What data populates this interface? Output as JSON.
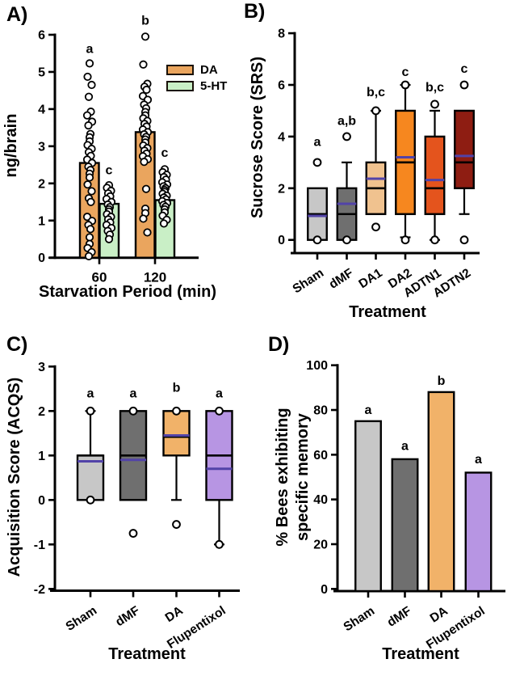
{
  "figure": {
    "background": "#FFFFFF"
  },
  "style_colors": {
    "axis": "#000000",
    "box_border": "#000000",
    "median_line": "#000000",
    "mean_line": "#5243A8",
    "point_fill": "#FFFFFF",
    "point_stroke": "#000000"
  },
  "chart_data": [
    {
      "panel_label": "A)",
      "type": "grouped-bar-scatter",
      "ylabel": "ng/brain",
      "xlabel": "Starvation Period (min)",
      "ylim": [
        0,
        6
      ],
      "yticks": [
        0,
        1,
        2,
        3,
        4,
        5,
        6
      ],
      "categories": [
        "60",
        "120"
      ],
      "legend_position": "upper-right",
      "series": [
        {
          "name": "DA",
          "color": "#EAA55E",
          "bar_means": [
            2.55,
            3.38
          ],
          "points": [
            [
              5.23,
              4.87,
              4.65,
              4.33,
              3.93,
              3.83,
              3.66,
              3.56,
              3.33,
              3.24,
              3.13,
              3.03,
              2.93,
              2.84,
              2.74,
              2.64,
              2.55,
              2.45,
              2.36,
              2.26,
              2.16,
              1.97,
              1.79,
              1.6,
              1.5,
              1.1,
              0.99,
              0.88,
              0.77,
              0.55,
              0.37,
              0.26,
              0.15,
              0.04
            ],
            [
              5.95,
              5.2,
              4.68,
              4.6,
              4.52,
              4.35,
              4.25,
              4.12,
              4.02,
              3.92,
              3.83,
              3.75,
              3.68,
              3.6,
              3.53,
              3.45,
              3.38,
              3.32,
              3.25,
              3.18,
              3.1,
              3.02,
              2.95,
              2.88,
              2.8,
              2.73,
              2.65,
              2.58,
              1.85,
              1.32,
              1.2,
              1.05,
              0.68
            ]
          ],
          "sig_labels": [
            {
              "text": "a",
              "y": 5.62
            },
            {
              "text": "b",
              "y": 6.38
            }
          ]
        },
        {
          "name": "5-HT",
          "color": "#C9EFC6",
          "bar_means": [
            1.45,
            1.55
          ],
          "points": [
            [
              1.95,
              1.88,
              1.8,
              1.73,
              1.65,
              1.58,
              1.5,
              1.43,
              1.36,
              1.3,
              1.24,
              1.17,
              1.1,
              1.03,
              0.95,
              0.88,
              0.8,
              0.72,
              0.62,
              0.5
            ],
            [
              2.38,
              2.3,
              2.23,
              2.17,
              2.1,
              2.03,
              1.97,
              1.92,
              1.87,
              1.82,
              1.77,
              1.72,
              1.67,
              1.62,
              1.57,
              1.52,
              1.47,
              1.42,
              1.37,
              1.3,
              1.22,
              1.13,
              1.02,
              0.92
            ]
          ],
          "sig_labels": [
            {
              "text": "c",
              "y": 2.36
            },
            {
              "text": "c",
              "y": 2.82
            }
          ]
        }
      ]
    },
    {
      "panel_label": "B)",
      "type": "box",
      "ylabel": "Sucrose Score (SRS)",
      "xlabel": "Treatment",
      "ylim": [
        0,
        8
      ],
      "yticks": [
        0,
        2,
        4,
        6,
        8
      ],
      "boxes": [
        {
          "label": "Sham",
          "color": "#C7C7C7",
          "q1": 0,
          "q3": 2,
          "median": 1.0,
          "mean": 0.93,
          "whisker_low": null,
          "whisker_high": null,
          "outliers": [
            3,
            0
          ],
          "sig": "a",
          "sig_y": 3.8
        },
        {
          "label": "dMF",
          "color": "#6F6F6F",
          "q1": 0,
          "q3": 2,
          "median": 1.0,
          "mean": 1.4,
          "whisker_low": null,
          "whisker_high": 3,
          "outliers": [
            4,
            0
          ],
          "sig": "a,b",
          "sig_y": 4.6
        },
        {
          "label": "DA1",
          "color": "#F0C28F",
          "q1": 1,
          "q3": 3,
          "median": 2.0,
          "mean": 2.37,
          "whisker_low": null,
          "whisker_high": 5,
          "outliers": [
            5,
            0.5
          ],
          "sig": "b,c",
          "sig_y": 5.72
        },
        {
          "label": "DA2",
          "color": "#F6871F",
          "q1": 1,
          "q3": 5,
          "median": 3.0,
          "mean": 3.2,
          "whisker_low": 0.1,
          "whisker_high": 6,
          "outliers": [
            6,
            0
          ],
          "sig": "c",
          "sig_y": 6.5
        },
        {
          "label": "ADTN1",
          "color": "#E4541D",
          "q1": 1,
          "q3": 4,
          "median": 2.0,
          "mean": 2.32,
          "whisker_low": 0,
          "whisker_high": 5,
          "outliers": [
            5.25,
            0
          ],
          "sig": "b,c",
          "sig_y": 5.9
        },
        {
          "label": "ADTN2",
          "color": "#8E1D12",
          "q1": 2,
          "q3": 5,
          "median": 3.0,
          "mean": 3.25,
          "whisker_low": 1,
          "whisker_high": null,
          "outliers": [
            6,
            0
          ],
          "sig": "c",
          "sig_y": 6.62
        }
      ]
    },
    {
      "panel_label": "C)",
      "type": "box",
      "ylabel": "Acquisition Score (ACQS)",
      "xlabel": "Treatment",
      "ylim": [
        -2,
        3
      ],
      "yticks": [
        -2,
        -1,
        0,
        1,
        2,
        3
      ],
      "boxes": [
        {
          "label": "Sham",
          "color": "#C7C7C7",
          "q1": 0,
          "q3": 1,
          "median": 1.0,
          "mean": 0.87,
          "whisker_low": null,
          "whisker_high": 2,
          "outliers": [
            2,
            0
          ],
          "sig": "a",
          "sig_y": 2.4
        },
        {
          "label": "dMF",
          "color": "#6F6F6F",
          "q1": 0,
          "q3": 2,
          "median": 1.0,
          "mean": 0.9,
          "whisker_low": null,
          "whisker_high": null,
          "outliers": [
            2,
            -0.75
          ],
          "sig": "a",
          "sig_y": 2.4
        },
        {
          "label": "DA",
          "color": "#F1B269",
          "q1": 1,
          "q3": 2,
          "median": 1.42,
          "mean": 1.45,
          "whisker_low": 0,
          "whisker_high": null,
          "outliers": [
            2,
            -0.55
          ],
          "sig": "b",
          "sig_y": 2.52
        },
        {
          "label": "Flupentixol",
          "color": "#B795E3",
          "q1": 0,
          "q3": 2,
          "median": 1.0,
          "mean": 0.7,
          "whisker_low": -1,
          "whisker_high": null,
          "outliers": [
            2,
            -1
          ],
          "sig": "a",
          "sig_y": 2.4
        }
      ]
    },
    {
      "panel_label": "D)",
      "type": "bar",
      "ylabel": "% Bees exhibiting\nspecific memory",
      "xlabel": "Treatment",
      "ylim": [
        0,
        100
      ],
      "yticks": [
        0,
        20,
        40,
        60,
        80,
        100
      ],
      "bars": [
        {
          "label": "Sham",
          "color": "#C7C7C7",
          "value": 75,
          "sig": "a",
          "sig_y": 80
        },
        {
          "label": "dMF",
          "color": "#6F6F6F",
          "value": 58,
          "sig": "a",
          "sig_y": 64
        },
        {
          "label": "DA",
          "color": "#F1B269",
          "value": 88,
          "sig": "b",
          "sig_y": 93
        },
        {
          "label": "Flupentixol",
          "color": "#B795E3",
          "value": 52,
          "sig": "a",
          "sig_y": 58
        }
      ]
    }
  ]
}
